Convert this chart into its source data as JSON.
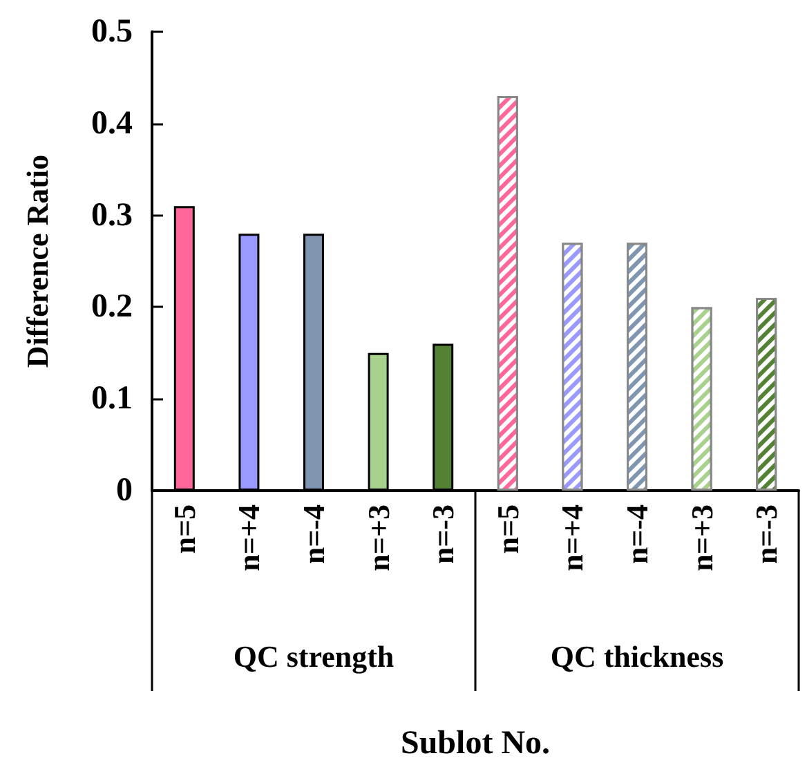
{
  "chart_data": {
    "type": "bar",
    "xlabel": "Sublot No.",
    "ylabel": "Difference Ratio",
    "categories": [
      "n=5",
      "n=+4",
      "n=-4",
      "n=+3",
      "n=-3",
      "n=5",
      "n=+4",
      "n=-4",
      "n=+3",
      "n=-3"
    ],
    "series": [
      {
        "values": [
          0.31,
          0.28,
          0.28,
          0.15,
          0.16,
          null,
          null,
          null,
          null,
          null
        ],
        "colors": [
          "#ff6699",
          "#9999ff",
          "#8096b0",
          "#a9d18e",
          "#548235",
          null,
          null,
          null,
          null,
          null
        ]
      },
      {
        "values": [
          null,
          null,
          null,
          null,
          null,
          0.43,
          0.27,
          0.27,
          0.2,
          0.21
        ],
        "colors": [
          null,
          null,
          null,
          null,
          null,
          "#ff6699",
          "#9999ff",
          "#8096b0",
          "#a9d18e",
          "#548235"
        ]
      }
    ],
    "annotations": [
      "QC strength",
      "QC thickness"
    ],
    "ylim": [
      0,
      0.5
    ],
    "yticks": [
      0,
      0.1,
      0.2,
      0.3,
      0.4,
      0.5
    ],
    "grid": false
  }
}
